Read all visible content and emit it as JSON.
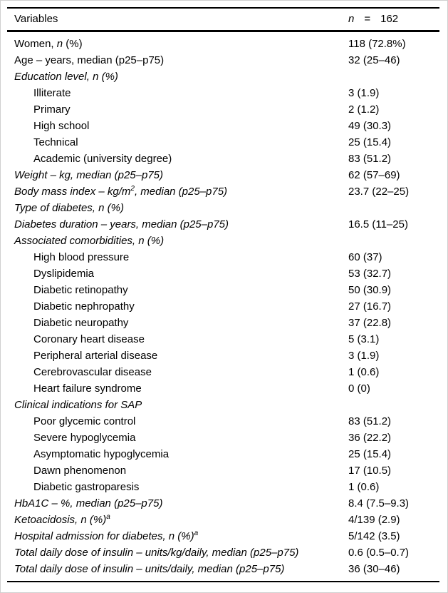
{
  "table": {
    "header": {
      "variables_label": "Variables",
      "n_label": "n",
      "equals": "=",
      "n_value": "162"
    },
    "rows": [
      {
        "indent": 0,
        "segs": [
          {
            "t": "Women, "
          },
          {
            "t": "n",
            "i": true
          },
          {
            "t": " (%)"
          }
        ],
        "value": "118 (72.8%)"
      },
      {
        "indent": 0,
        "segs": [
          {
            "t": "Age – years, median (p25–p75)"
          }
        ],
        "value": "32 (25–46)"
      },
      {
        "indent": 0,
        "segs": [
          {
            "t": "Education level, n (%)",
            "i": true
          }
        ],
        "value": ""
      },
      {
        "indent": 1,
        "segs": [
          {
            "t": "Illiterate"
          }
        ],
        "value": "3 (1.9)"
      },
      {
        "indent": 1,
        "segs": [
          {
            "t": "Primary"
          }
        ],
        "value": "2 (1.2)"
      },
      {
        "indent": 1,
        "segs": [
          {
            "t": "High school"
          }
        ],
        "value": "49 (30.3)"
      },
      {
        "indent": 1,
        "segs": [
          {
            "t": "Technical"
          }
        ],
        "value": "25 (15.4)"
      },
      {
        "indent": 1,
        "segs": [
          {
            "t": "Academic (university degree)"
          }
        ],
        "value": "83 (51.2)"
      },
      {
        "indent": 0,
        "segs": [
          {
            "t": "Weight – kg, median (p25–p75)",
            "i": true
          }
        ],
        "value": "62 (57–69)"
      },
      {
        "indent": 0,
        "segs": [
          {
            "t": "Body mass index – kg/m",
            "i": true
          },
          {
            "t": "2",
            "i": true,
            "sup": true
          },
          {
            "t": ", median (p25–p75)",
            "i": true
          }
        ],
        "value": "23.7 (22–25)"
      },
      {
        "indent": 0,
        "segs": [
          {
            "t": "Type of diabetes, n (%)",
            "i": true
          }
        ],
        "value": ""
      },
      {
        "indent": 0,
        "segs": [
          {
            "t": "Diabetes duration – years, median (p25–p75)",
            "i": true
          }
        ],
        "value": "16.5 (11–25)"
      },
      {
        "indent": 0,
        "segs": [
          {
            "t": "Associated comorbidities, n (%)",
            "i": true
          }
        ],
        "value": ""
      },
      {
        "indent": 1,
        "segs": [
          {
            "t": "High blood pressure"
          }
        ],
        "value": "60 (37)"
      },
      {
        "indent": 1,
        "segs": [
          {
            "t": "Dyslipidemia"
          }
        ],
        "value": "53 (32.7)"
      },
      {
        "indent": 1,
        "segs": [
          {
            "t": "Diabetic retinopathy"
          }
        ],
        "value": "50 (30.9)"
      },
      {
        "indent": 1,
        "segs": [
          {
            "t": "Diabetic nephropathy"
          }
        ],
        "value": "27 (16.7)"
      },
      {
        "indent": 1,
        "segs": [
          {
            "t": "Diabetic neuropathy"
          }
        ],
        "value": "37 (22.8)"
      },
      {
        "indent": 1,
        "segs": [
          {
            "t": "Coronary heart disease"
          }
        ],
        "value": "5 (3.1)"
      },
      {
        "indent": 1,
        "segs": [
          {
            "t": "Peripheral arterial disease"
          }
        ],
        "value": "3 (1.9)"
      },
      {
        "indent": 1,
        "segs": [
          {
            "t": "Cerebrovascular disease"
          }
        ],
        "value": "1 (0.6)"
      },
      {
        "indent": 1,
        "segs": [
          {
            "t": "Heart failure syndrome"
          }
        ],
        "value": "0 (0)"
      },
      {
        "indent": 0,
        "segs": [
          {
            "t": "Clinical indications for SAP",
            "i": true
          }
        ],
        "value": ""
      },
      {
        "indent": 1,
        "segs": [
          {
            "t": "Poor glycemic control"
          }
        ],
        "value": "83 (51.2)"
      },
      {
        "indent": 1,
        "segs": [
          {
            "t": "Severe hypoglycemia"
          }
        ],
        "value": "36 (22.2)"
      },
      {
        "indent": 1,
        "segs": [
          {
            "t": "Asymptomatic hypoglycemia"
          }
        ],
        "value": "25 (15.4)"
      },
      {
        "indent": 1,
        "segs": [
          {
            "t": "Dawn phenomenon"
          }
        ],
        "value": "17 (10.5)"
      },
      {
        "indent": 1,
        "segs": [
          {
            "t": "Diabetic gastroparesis"
          }
        ],
        "value": "1 (0.6)"
      },
      {
        "indent": 0,
        "segs": [
          {
            "t": "HbA1C – %, median (p25–p75)",
            "i": true
          }
        ],
        "value": "8.4 (7.5–9.3)"
      },
      {
        "indent": 0,
        "segs": [
          {
            "t": "Ketoacidosis, n (%)",
            "i": true
          },
          {
            "t": "a",
            "i": true,
            "sup": true
          }
        ],
        "value": "4/139 (2.9)"
      },
      {
        "indent": 0,
        "segs": [
          {
            "t": "Hospital admission for diabetes, n (%)",
            "i": true
          },
          {
            "t": "a",
            "i": true,
            "sup": true
          }
        ],
        "value": "5/142 (3.5)"
      },
      {
        "indent": 0,
        "segs": [
          {
            "t": "Total daily dose of insulin – units/kg/daily, median (p25–p75)",
            "i": true
          }
        ],
        "value": "0.6 (0.5–0.7)"
      },
      {
        "indent": 0,
        "segs": [
          {
            "t": "Total daily dose of insulin – units/daily, median (p25–p75)",
            "i": true
          }
        ],
        "value": "36 (30–46)"
      }
    ]
  },
  "colors": {
    "rule": "#000000",
    "text": "#000000",
    "frame": "#cfcfcf",
    "background": "#ffffff"
  }
}
